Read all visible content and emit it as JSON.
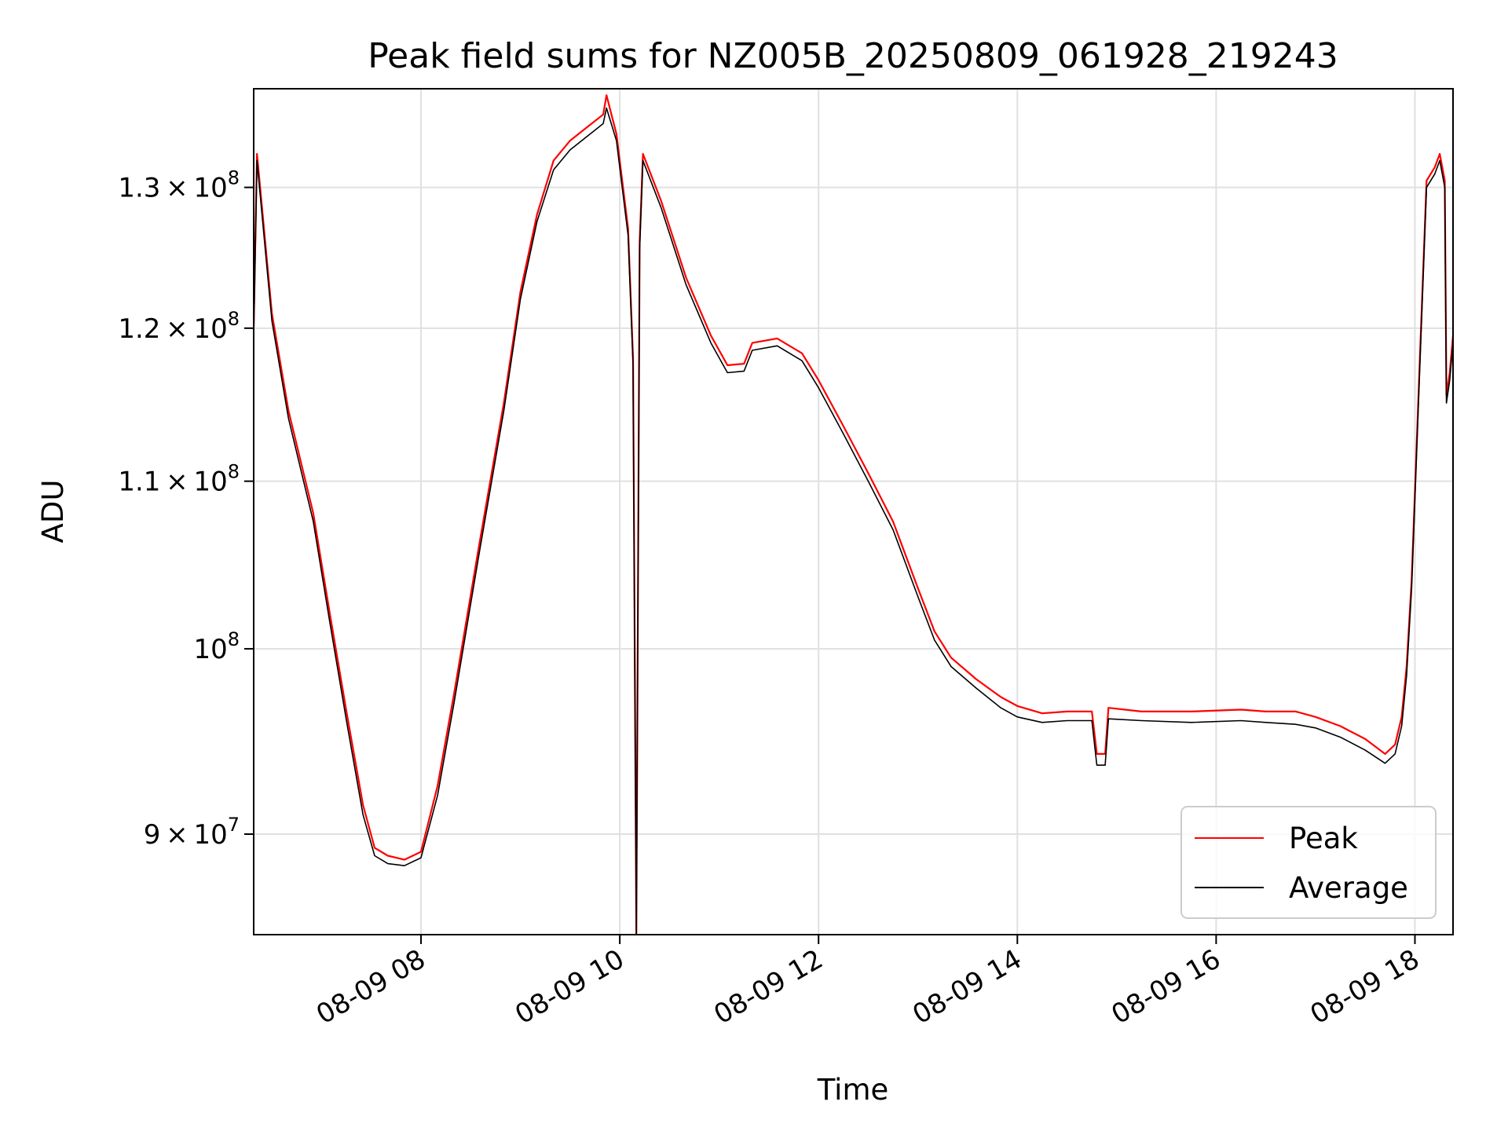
{
  "chart_data": {
    "type": "line",
    "title": "Peak field sums for NZ005B_20250809_061928_219243",
    "xlabel": "Time",
    "ylabel": "ADU",
    "y_scale": "log",
    "grid": true,
    "legend_position": "lower-right",
    "xlim": [
      "08-09 06:19",
      "08-09 18:23"
    ],
    "ylim": [
      85000000,
      137500000
    ],
    "x_ticks": [
      "08-09 08",
      "08-09 10",
      "08-09 12",
      "08-09 14",
      "08-09 16",
      "08-09 18"
    ],
    "y_ticks": [
      {
        "value": 90000000,
        "mant": "9",
        "exp": "7"
      },
      {
        "value": 100000000,
        "mant": "",
        "exp": "8"
      },
      {
        "value": 110000000,
        "mant": "1.1",
        "exp": "8"
      },
      {
        "value": 120000000,
        "mant": "1.2",
        "exp": "8"
      },
      {
        "value": 130000000,
        "mant": "1.3",
        "exp": "8"
      }
    ],
    "series": [
      {
        "name": "Peak",
        "color": "#ff0000",
        "points": [
          [
            "08-09 06:19",
            120000000
          ],
          [
            "08-09 06:21",
            132500000
          ],
          [
            "08-09 06:30",
            121000000
          ],
          [
            "08-09 06:40",
            114500000
          ],
          [
            "08-09 06:55",
            108000000
          ],
          [
            "08-09 07:05",
            102000000
          ],
          [
            "08-09 07:15",
            96500000
          ],
          [
            "08-09 07:25",
            91500000
          ],
          [
            "08-09 07:32",
            89300000
          ],
          [
            "08-09 07:40",
            88900000
          ],
          [
            "08-09 07:50",
            88700000
          ],
          [
            "08-09 08:00",
            89100000
          ],
          [
            "08-09 08:10",
            92500000
          ],
          [
            "08-09 08:20",
            97500000
          ],
          [
            "08-09 08:35",
            106000000
          ],
          [
            "08-09 08:50",
            115000000
          ],
          [
            "08-09 09:00",
            122500000
          ],
          [
            "08-09 09:10",
            128000000
          ],
          [
            "08-09 09:20",
            132000000
          ],
          [
            "08-09 09:30",
            133500000
          ],
          [
            "08-09 09:40",
            134500000
          ],
          [
            "08-09 09:50",
            135500000
          ],
          [
            "08-09 09:52",
            137000000
          ],
          [
            "08-09 09:58",
            134000000
          ],
          [
            "08-09 10:05",
            127000000
          ],
          [
            "08-09 10:08",
            118000000
          ],
          [
            "08-09 10:10",
            85000000
          ],
          [
            "08-09 10:12",
            126000000
          ],
          [
            "08-09 10:14",
            132500000
          ],
          [
            "08-09 10:25",
            129000000
          ],
          [
            "08-09 10:40",
            123500000
          ],
          [
            "08-09 10:55",
            119500000
          ],
          [
            "08-09 11:05",
            117500000
          ],
          [
            "08-09 11:15",
            117600000
          ],
          [
            "08-09 11:20",
            119000000
          ],
          [
            "08-09 11:35",
            119300000
          ],
          [
            "08-09 11:50",
            118300000
          ],
          [
            "08-09 12:00",
            116500000
          ],
          [
            "08-09 12:15",
            113500000
          ],
          [
            "08-09 12:30",
            110500000
          ],
          [
            "08-09 12:45",
            107500000
          ],
          [
            "08-09 13:00",
            103500000
          ],
          [
            "08-09 13:10",
            101000000
          ],
          [
            "08-09 13:20",
            99500000
          ],
          [
            "08-09 13:35",
            98300000
          ],
          [
            "08-09 13:50",
            97300000
          ],
          [
            "08-09 14:00",
            96800000
          ],
          [
            "08-09 14:15",
            96400000
          ],
          [
            "08-09 14:30",
            96500000
          ],
          [
            "08-09 14:45",
            96500000
          ],
          [
            "08-09 14:48",
            94200000
          ],
          [
            "08-09 14:53",
            94200000
          ],
          [
            "08-09 14:55",
            96700000
          ],
          [
            "08-09 15:15",
            96500000
          ],
          [
            "08-09 15:45",
            96500000
          ],
          [
            "08-09 16:15",
            96600000
          ],
          [
            "08-09 16:30",
            96500000
          ],
          [
            "08-09 16:48",
            96500000
          ],
          [
            "08-09 17:00",
            96200000
          ],
          [
            "08-09 17:15",
            95700000
          ],
          [
            "08-09 17:30",
            95000000
          ],
          [
            "08-09 17:42",
            94200000
          ],
          [
            "08-09 17:48",
            94700000
          ],
          [
            "08-09 17:52",
            96200000
          ],
          [
            "08-09 17:55",
            99000000
          ],
          [
            "08-09 17:58",
            104000000
          ],
          [
            "08-09 18:03",
            118000000
          ],
          [
            "08-09 18:07",
            130500000
          ],
          [
            "08-09 18:12",
            131500000
          ],
          [
            "08-09 18:15",
            132500000
          ],
          [
            "08-09 18:18",
            130500000
          ],
          [
            "08-09 18:19",
            115500000
          ],
          [
            "08-09 18:21",
            117000000
          ],
          [
            "08-09 18:23",
            119500000
          ]
        ]
      },
      {
        "name": "Average",
        "color": "#000000",
        "points": [
          [
            "08-09 06:19",
            119500000
          ],
          [
            "08-09 06:21",
            132000000
          ],
          [
            "08-09 06:30",
            120500000
          ],
          [
            "08-09 06:40",
            114000000
          ],
          [
            "08-09 06:55",
            107500000
          ],
          [
            "08-09 07:05",
            101500000
          ],
          [
            "08-09 07:15",
            96000000
          ],
          [
            "08-09 07:25",
            91000000
          ],
          [
            "08-09 07:32",
            88900000
          ],
          [
            "08-09 07:40",
            88500000
          ],
          [
            "08-09 07:50",
            88400000
          ],
          [
            "08-09 08:00",
            88800000
          ],
          [
            "08-09 08:10",
            92000000
          ],
          [
            "08-09 08:20",
            97000000
          ],
          [
            "08-09 08:35",
            105500000
          ],
          [
            "08-09 08:50",
            114500000
          ],
          [
            "08-09 09:00",
            122000000
          ],
          [
            "08-09 09:10",
            127500000
          ],
          [
            "08-09 09:20",
            131300000
          ],
          [
            "08-09 09:30",
            132800000
          ],
          [
            "08-09 09:40",
            133800000
          ],
          [
            "08-09 09:50",
            134800000
          ],
          [
            "08-09 09:52",
            136000000
          ],
          [
            "08-09 09:58",
            133500000
          ],
          [
            "08-09 10:05",
            126500000
          ],
          [
            "08-09 10:08",
            117500000
          ],
          [
            "08-09 10:10",
            85000000
          ],
          [
            "08-09 10:12",
            125500000
          ],
          [
            "08-09 10:14",
            132000000
          ],
          [
            "08-09 10:25",
            128500000
          ],
          [
            "08-09 10:40",
            123000000
          ],
          [
            "08-09 10:55",
            119000000
          ],
          [
            "08-09 11:05",
            117000000
          ],
          [
            "08-09 11:15",
            117100000
          ],
          [
            "08-09 11:20",
            118500000
          ],
          [
            "08-09 11:35",
            118800000
          ],
          [
            "08-09 11:50",
            117800000
          ],
          [
            "08-09 12:00",
            116000000
          ],
          [
            "08-09 12:15",
            113000000
          ],
          [
            "08-09 12:30",
            110000000
          ],
          [
            "08-09 12:45",
            107000000
          ],
          [
            "08-09 13:00",
            103000000
          ],
          [
            "08-09 13:10",
            100500000
          ],
          [
            "08-09 13:20",
            99000000
          ],
          [
            "08-09 13:35",
            97800000
          ],
          [
            "08-09 13:50",
            96700000
          ],
          [
            "08-09 14:00",
            96200000
          ],
          [
            "08-09 14:15",
            95900000
          ],
          [
            "08-09 14:30",
            96000000
          ],
          [
            "08-09 14:45",
            96000000
          ],
          [
            "08-09 14:48",
            93600000
          ],
          [
            "08-09 14:53",
            93600000
          ],
          [
            "08-09 14:55",
            96100000
          ],
          [
            "08-09 15:15",
            96000000
          ],
          [
            "08-09 15:45",
            95900000
          ],
          [
            "08-09 16:15",
            96000000
          ],
          [
            "08-09 16:30",
            95900000
          ],
          [
            "08-09 16:48",
            95800000
          ],
          [
            "08-09 17:00",
            95600000
          ],
          [
            "08-09 17:15",
            95100000
          ],
          [
            "08-09 17:30",
            94400000
          ],
          [
            "08-09 17:42",
            93700000
          ],
          [
            "08-09 17:48",
            94200000
          ],
          [
            "08-09 17:52",
            95700000
          ],
          [
            "08-09 17:55",
            98500000
          ],
          [
            "08-09 17:58",
            103500000
          ],
          [
            "08-09 18:03",
            117500000
          ],
          [
            "08-09 18:07",
            130000000
          ],
          [
            "08-09 18:12",
            131000000
          ],
          [
            "08-09 18:15",
            132000000
          ],
          [
            "08-09 18:18",
            130000000
          ],
          [
            "08-09 18:19",
            115000000
          ],
          [
            "08-09 18:21",
            116500000
          ],
          [
            "08-09 18:23",
            119000000
          ]
        ]
      }
    ]
  }
}
